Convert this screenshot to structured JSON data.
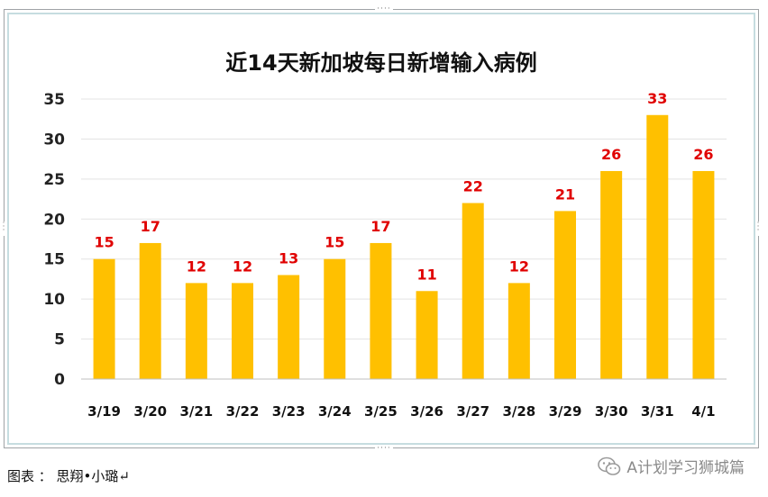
{
  "chart_data": {
    "type": "bar",
    "title": "近14天新加坡每日新增输入病例",
    "categories": [
      "3/19",
      "3/20",
      "3/21",
      "3/22",
      "3/23",
      "3/24",
      "3/25",
      "3/26",
      "3/27",
      "3/28",
      "3/29",
      "3/30",
      "3/31",
      "4/1"
    ],
    "values": [
      15,
      17,
      12,
      12,
      13,
      15,
      17,
      11,
      22,
      12,
      21,
      26,
      33,
      26
    ],
    "ylim": [
      0,
      35
    ],
    "yticks": [
      "0",
      "5",
      "10",
      "15",
      "20",
      "25",
      "30",
      "35"
    ],
    "grid": true,
    "bar_color": "#ffc000",
    "label_color": "#e00000"
  },
  "footer": {
    "credit": "图表 ： 思翔•小璐↵"
  },
  "watermark": {
    "icon": "wechat-icon",
    "text": "A计划学习狮城篇"
  }
}
